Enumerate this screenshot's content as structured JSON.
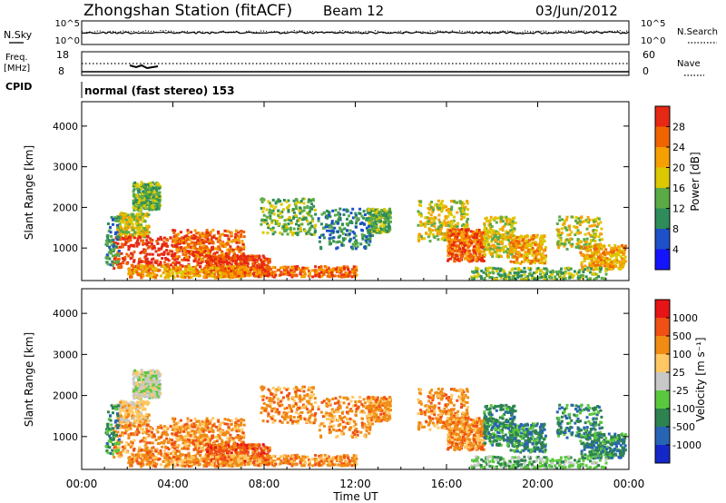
{
  "header": {
    "title": "Zhongshan Station (fitACF)",
    "beam": "Beam 12",
    "date": "03/Jun/2012"
  },
  "top_panels": {
    "nsky": {
      "left_label": "N.Sky",
      "left_ticks": [
        "10^5",
        "10^0"
      ],
      "right_ticks": [
        "10^5",
        "10^0"
      ],
      "right_label": "N.Search"
    },
    "freq": {
      "left_label_1": "Freq.",
      "left_label_2": "[MHz]",
      "left_ticks": [
        "18",
        "8"
      ],
      "right_ticks": [
        "60",
        "0"
      ],
      "right_label": "Nave"
    },
    "cpid": {
      "label": "CPID",
      "mode": "normal (fast stereo) 153"
    }
  },
  "chart_data": [
    {
      "type": "heatmap",
      "name": "power",
      "ylabel": "Slant Range [km]",
      "yticks": [
        "1000",
        "2000",
        "3000",
        "4000"
      ],
      "ylim": [
        200,
        4600
      ],
      "xlim_hours": [
        0,
        24
      ],
      "colorbar": {
        "label": "Power [dB]",
        "ticks": [
          "4",
          "8",
          "12",
          "16",
          "20",
          "24",
          "28"
        ],
        "colors": [
          "#1414ff",
          "#1e50c8",
          "#2d8c5a",
          "#5aaa46",
          "#dcc800",
          "#f5a000",
          "#f06400",
          "#e62814"
        ]
      }
    },
    {
      "type": "heatmap",
      "name": "velocity",
      "ylabel": "Slant Range [km]",
      "yticks": [
        "1000",
        "2000",
        "3000",
        "4000"
      ],
      "ylim": [
        200,
        4600
      ],
      "xlim_hours": [
        0,
        24
      ],
      "colorbar": {
        "label": "Velocity [m s⁻¹]",
        "ticks": [
          "1000",
          "500",
          "100",
          "25",
          "-25",
          "-100",
          "-500",
          "-1000"
        ],
        "colors": [
          "#1428c8",
          "#2864b4",
          "#2d8250",
          "#5ac83c",
          "#c8c8c8",
          "#ffc864",
          "#f08c14",
          "#f05014",
          "#e61414"
        ]
      }
    }
  ],
  "xaxis": {
    "label": "Time UT",
    "ticks": [
      "00:00",
      "04:00",
      "08:00",
      "12:00",
      "16:00",
      "20:00",
      "00:00"
    ]
  }
}
